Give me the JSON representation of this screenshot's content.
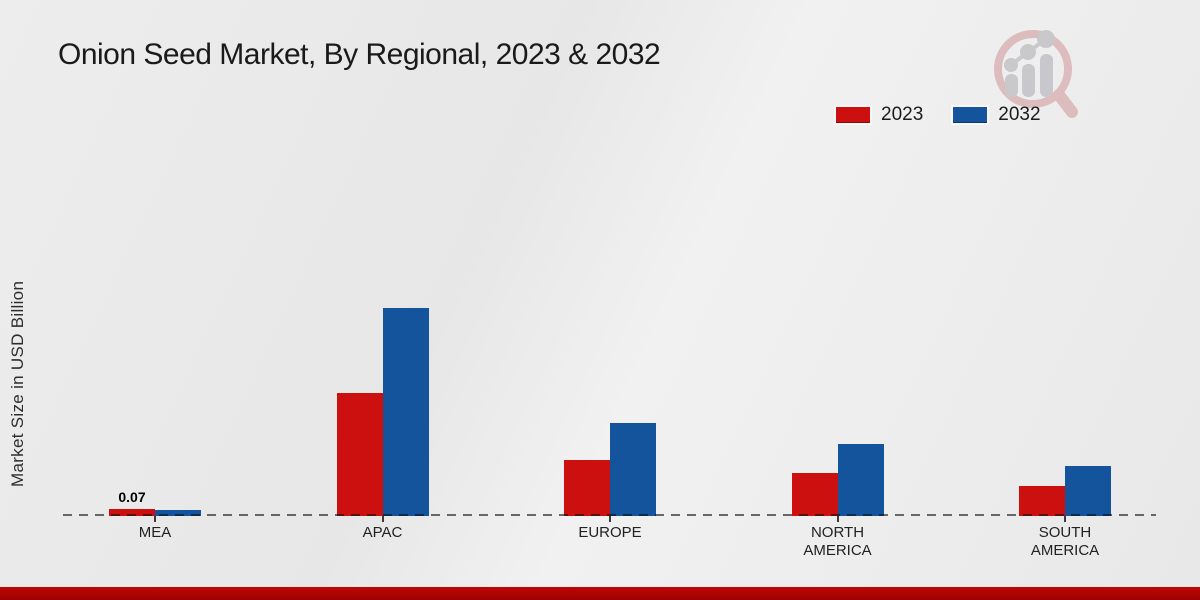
{
  "title": "Onion Seed Market, By Regional, 2023 & 2032",
  "watermark": {
    "name": "market-research-logo"
  },
  "chart_data": {
    "type": "bar",
    "title": "Onion Seed Market, By Regional, 2023 & 2032",
    "categories": [
      "MEA",
      "APAC",
      "EUROPE",
      "NORTH AMERICA",
      "SOUTH AMERICA"
    ],
    "series": [
      {
        "name": "2023",
        "color": "#cc1010",
        "values": [
          0.07,
          1.15,
          0.52,
          0.4,
          0.28
        ]
      },
      {
        "name": "2032",
        "color": "#14549c",
        "values": [
          0.06,
          1.94,
          0.87,
          0.67,
          0.47
        ]
      }
    ],
    "xlabel": "",
    "ylabel": "Market Size in USD Billion",
    "ylim": [
      0,
      2.2
    ],
    "grid": false,
    "legend_position": "top-right",
    "baseline_style": "dashed",
    "data_labels": [
      {
        "series": "2023",
        "category": "MEA",
        "text": "0.07"
      }
    ]
  }
}
